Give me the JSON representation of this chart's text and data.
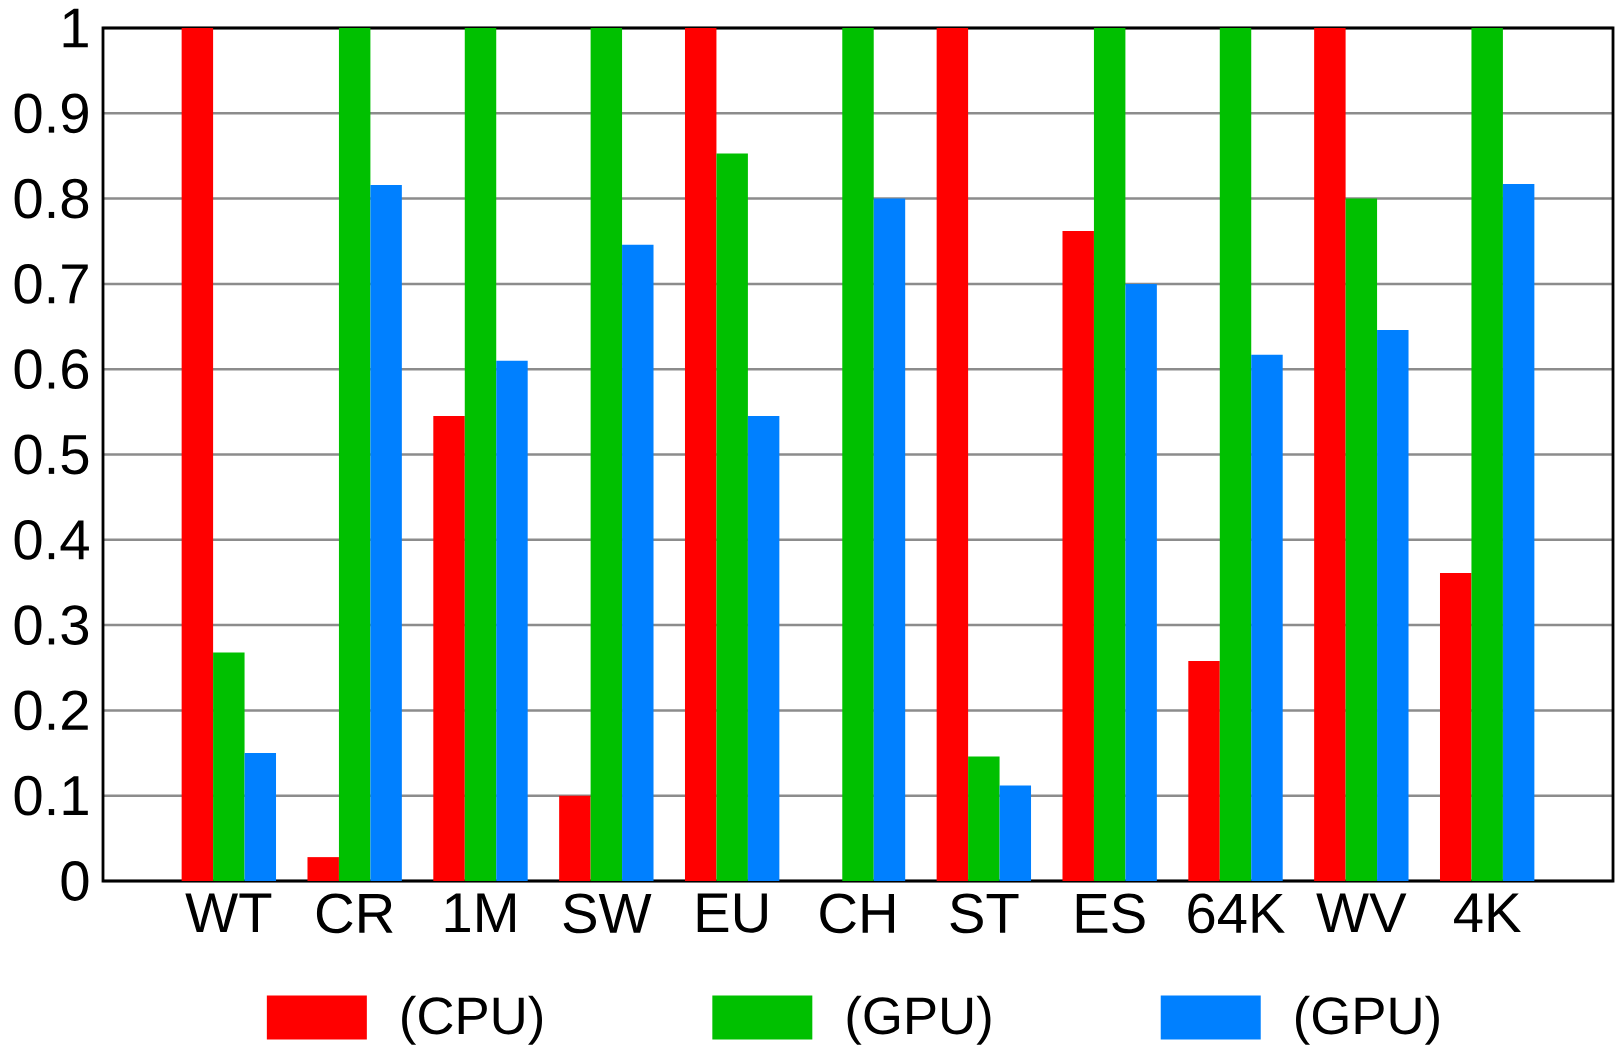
{
  "chart_data": {
    "type": "bar",
    "categories": [
      "WT",
      "CR",
      "1M",
      "SW",
      "EU",
      "CH",
      "ST",
      "ES",
      "64K",
      "WV",
      "4K"
    ],
    "series": [
      {
        "name": "(CPU)",
        "color": "#ff0000",
        "values": [
          1,
          0.028,
          0.545,
          0.1,
          1,
          0,
          1,
          0.762,
          0.258,
          1,
          0.361
        ]
      },
      {
        "name": "(GPU)",
        "color": "#00c000",
        "values": [
          0.268,
          1,
          1,
          1,
          0.853,
          1,
          0.146,
          1,
          1,
          0.8,
          1
        ]
      },
      {
        "name": "(GPU)",
        "color": "#0080ff",
        "values": [
          0.15,
          0.816,
          0.61,
          0.746,
          0.545,
          0.8,
          0.112,
          0.7,
          0.617,
          0.646,
          0.817
        ]
      }
    ],
    "ylim": [
      0,
      1
    ],
    "yticks": [
      0,
      0.1,
      0.2,
      0.3,
      0.4,
      0.5,
      0.6,
      0.7,
      0.8,
      0.9,
      1
    ],
    "grid": "y",
    "legend": "bottom"
  }
}
